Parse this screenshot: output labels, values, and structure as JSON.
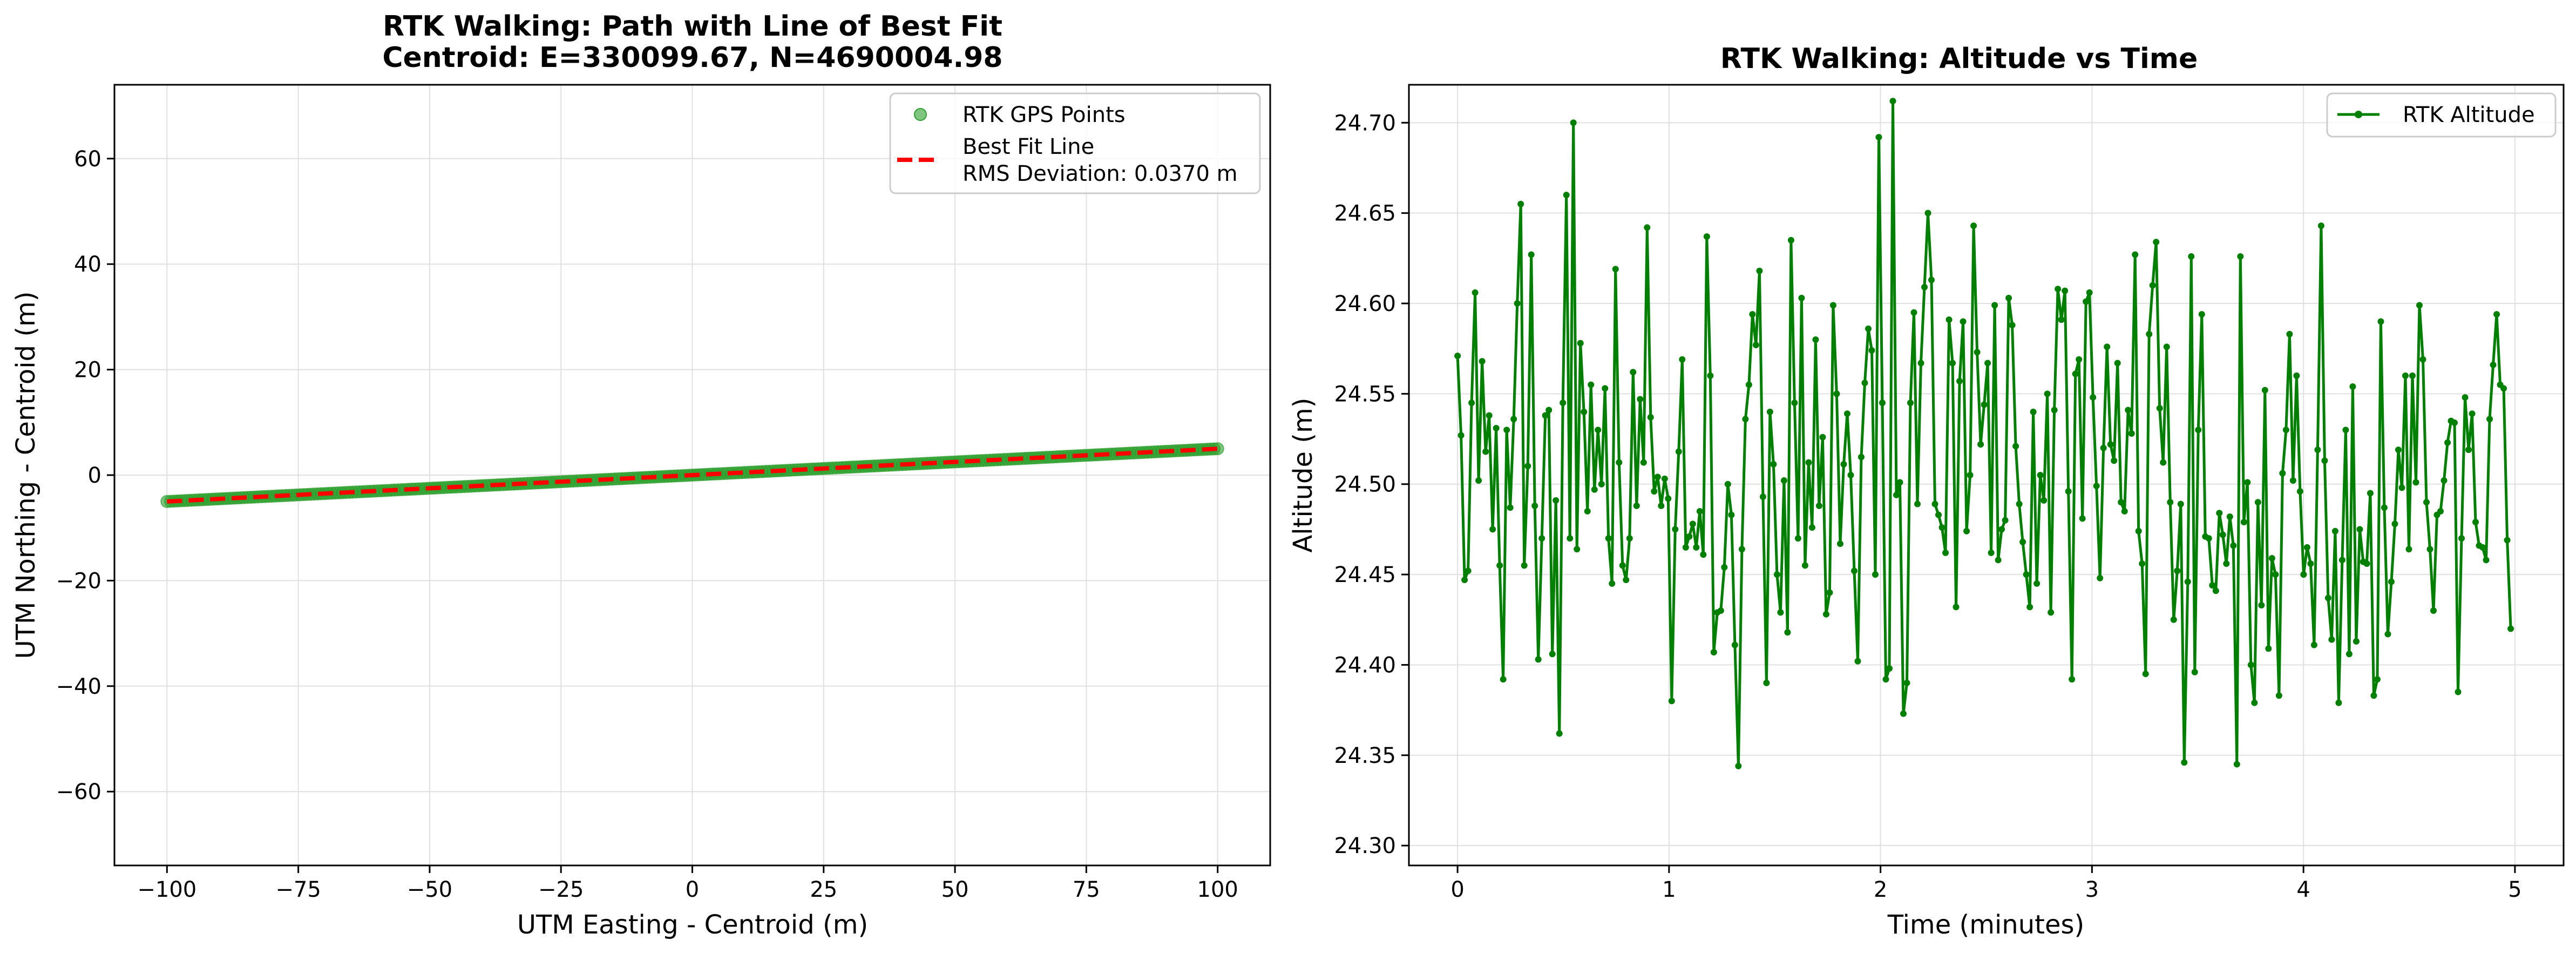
{
  "colors": {
    "points": "#2ca02c",
    "fit_line": "#ff0000",
    "altitude": "#008000",
    "grid": "#e0e0e0"
  },
  "chart_data": [
    {
      "type": "scatter",
      "title_lines": [
        "RTK Walking: Path with Line of Best Fit",
        "Centroid: E=330099.67, N=4690004.98"
      ],
      "xlabel": "UTM Easting - Centroid (m)",
      "ylabel": "UTM Northing - Centroid (m)",
      "xlim": [
        -110,
        110
      ],
      "ylim": [
        -74,
        74
      ],
      "xticks": [
        -100,
        -75,
        -50,
        -25,
        0,
        25,
        50,
        75,
        100
      ],
      "yticks": [
        -60,
        -40,
        -20,
        0,
        20,
        40,
        60
      ],
      "xtick_labels": [
        "−100",
        "−75",
        "−50",
        "−25",
        "0",
        "25",
        "50",
        "75",
        "100"
      ],
      "ytick_labels": [
        "−60",
        "−40",
        "−20",
        "0",
        "20",
        "40",
        "60"
      ],
      "grid": true,
      "legend_position": "upper right",
      "series": [
        {
          "name": "RTK GPS Points",
          "kind": "points",
          "x_range": [
            -100,
            100
          ],
          "n_points": 301,
          "slope": 0.05,
          "intercept": 0
        },
        {
          "name": "Best Fit Line",
          "kind": "line",
          "style": "dashed",
          "x": [
            -100,
            100
          ],
          "y": [
            -5,
            5
          ]
        }
      ],
      "legend": [
        {
          "label": "RTK GPS Points",
          "marker": "circle"
        },
        {
          "label": "Best Fit Line",
          "sublabel": "RMS Deviation: 0.0370 m",
          "marker": "dashed-line"
        }
      ]
    },
    {
      "type": "line",
      "title": "RTK Walking: Altitude vs Time",
      "xlabel": "Time (minutes)",
      "ylabel": "Altitude (m)",
      "xlim": [
        -0.23,
        5.23
      ],
      "ylim": [
        24.289,
        24.721
      ],
      "xticks": [
        0,
        1,
        2,
        3,
        4,
        5
      ],
      "yticks": [
        24.3,
        24.35,
        24.4,
        24.45,
        24.5,
        24.55,
        24.6,
        24.65,
        24.7
      ],
      "xtick_labels": [
        "0",
        "1",
        "2",
        "3",
        "4",
        "5"
      ],
      "ytick_labels": [
        "24.30",
        "24.35",
        "24.40",
        "24.45",
        "24.50",
        "24.55",
        "24.60",
        "24.65",
        "24.70"
      ],
      "grid": true,
      "legend_position": "upper right",
      "legend": [
        {
          "label": "RTK Altitude",
          "marker": "line-dot"
        }
      ],
      "series": [
        {
          "name": "RTK Altitude",
          "x_start": 0,
          "x_end": 4.98,
          "values": [
            24.571,
            24.527,
            24.447,
            24.452,
            24.545,
            24.606,
            24.502,
            24.568,
            24.518,
            24.538,
            24.475,
            24.531,
            24.455,
            24.392,
            24.53,
            24.487,
            24.536,
            24.6,
            24.655,
            24.455,
            24.51,
            24.627,
            24.488,
            24.403,
            24.47,
            24.538,
            24.541,
            24.406,
            24.491,
            24.362,
            24.545,
            24.66,
            24.47,
            24.7,
            24.464,
            24.578,
            24.54,
            24.485,
            24.555,
            24.497,
            24.53,
            24.5,
            24.553,
            24.47,
            24.445,
            24.619,
            24.512,
            24.455,
            24.447,
            24.47,
            24.562,
            24.488,
            24.547,
            24.512,
            24.642,
            24.537,
            24.496,
            24.504,
            24.488,
            24.503,
            24.492,
            24.38,
            24.475,
            24.518,
            24.569,
            24.465,
            24.471,
            24.478,
            24.465,
            24.485,
            24.461,
            24.637,
            24.56,
            24.407,
            24.429,
            24.43,
            24.454,
            24.5,
            24.483,
            24.411,
            24.344,
            24.464,
            24.536,
            24.555,
            24.594,
            24.577,
            24.618,
            24.493,
            24.39,
            24.54,
            24.511,
            24.45,
            24.429,
            24.502,
            24.418,
            24.635,
            24.545,
            24.47,
            24.603,
            24.455,
            24.512,
            24.476,
            24.58,
            24.488,
            24.526,
            24.428,
            24.44,
            24.599,
            24.55,
            24.467,
            24.511,
            24.539,
            24.505,
            24.452,
            24.402,
            24.515,
            24.556,
            24.586,
            24.574,
            24.45,
            24.692,
            24.545,
            24.392,
            24.398,
            24.712,
            24.494,
            24.501,
            24.373,
            24.39,
            24.545,
            24.595,
            24.489,
            24.567,
            24.609,
            24.65,
            24.613,
            24.489,
            24.483,
            24.476,
            24.462,
            24.591,
            24.567,
            24.432,
            24.557,
            24.59,
            24.474,
            24.505,
            24.643,
            24.573,
            24.522,
            24.544,
            24.567,
            24.462,
            24.599,
            24.458,
            24.475,
            24.48,
            24.603,
            24.588,
            24.521,
            24.489,
            24.468,
            24.45,
            24.432,
            24.54,
            24.445,
            24.505,
            24.491,
            24.55,
            24.429,
            24.541,
            24.608,
            24.591,
            24.607,
            24.496,
            24.392,
            24.561,
            24.569,
            24.481,
            24.601,
            24.606,
            24.548,
            24.499,
            24.448,
            24.52,
            24.576,
            24.522,
            24.513,
            24.567,
            24.49,
            24.485,
            24.541,
            24.528,
            24.627,
            24.474,
            24.456,
            24.395,
            24.583,
            24.61,
            24.634,
            24.542,
            24.512,
            24.576,
            24.49,
            24.425,
            24.452,
            24.489,
            24.346,
            24.446,
            24.626,
            24.396,
            24.53,
            24.594,
            24.471,
            24.47,
            24.444,
            24.441,
            24.484,
            24.472,
            24.456,
            24.482,
            24.466,
            24.345,
            24.626,
            24.479,
            24.501,
            24.4,
            24.379,
            24.49,
            24.433,
            24.552,
            24.409,
            24.459,
            24.45,
            24.383,
            24.506,
            24.53,
            24.583,
            24.502,
            24.56,
            24.496,
            24.45,
            24.465,
            24.456,
            24.411,
            24.519,
            24.643,
            24.513,
            24.437,
            24.414,
            24.474,
            24.379,
            24.458,
            24.53,
            24.406,
            24.554,
            24.413,
            24.475,
            24.457,
            24.456,
            24.495,
            24.383,
            24.392,
            24.59,
            24.487,
            24.417,
            24.446,
            24.478,
            24.519,
            24.498,
            24.56,
            24.464,
            24.56,
            24.501,
            24.599,
            24.569,
            24.49,
            24.464,
            24.43,
            24.483,
            24.485,
            24.502,
            24.523,
            24.535,
            24.534,
            24.385,
            24.47,
            24.548,
            24.519,
            24.539,
            24.479,
            24.466,
            24.465,
            24.458,
            24.536,
            24.566,
            24.594,
            24.555,
            24.553,
            24.469,
            24.42
          ]
        }
      ]
    }
  ]
}
